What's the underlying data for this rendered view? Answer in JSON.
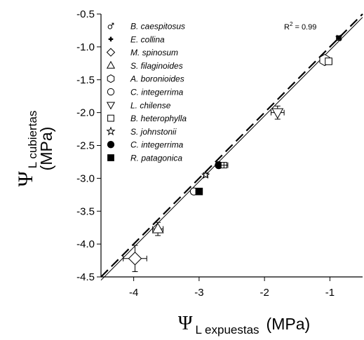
{
  "chart_data": {
    "type": "scatter",
    "x_axis": {
      "symbol": "Ψ",
      "subscript": "L expuestas",
      "unit": "(MPa)",
      "range": [
        -4.5,
        -0.5
      ],
      "ticks": [
        -4,
        -3,
        -2,
        -1
      ],
      "tick_labels": [
        "-4",
        "-3",
        "-2",
        "-1"
      ]
    },
    "y_axis": {
      "symbol": "Ψ",
      "subscript": "L cubiertas",
      "unit": "(MPa)",
      "range": [
        -4.5,
        -0.5
      ],
      "ticks": [
        -4.5,
        -4.0,
        -3.5,
        -3.0,
        -2.5,
        -2.0,
        -1.5,
        -1.0,
        -0.5
      ],
      "tick_labels": [
        "-4.5",
        "-4.0",
        "-3.5",
        "-3.0",
        "-2.5",
        "-2.0",
        "-1.5",
        "-1.0",
        "-0.5"
      ]
    },
    "annotation": {
      "text": "R",
      "sup": "2",
      "rest": " = 0.99"
    },
    "reference_lines": [
      {
        "kind": "1:1 line",
        "style": "dashed",
        "x": [
          -4.5,
          -0.5
        ],
        "y": [
          -4.5,
          -0.5
        ]
      },
      {
        "kind": "regression",
        "style": "solid",
        "x": [
          -4.5,
          -0.5
        ],
        "y": [
          -4.55,
          -0.55
        ]
      }
    ],
    "series": [
      {
        "name": "B. caespitosus",
        "marker": "male",
        "x": -0.86,
        "y": -0.86,
        "xerr": 0.03,
        "yerr": 0.03
      },
      {
        "name": "E. collina",
        "marker": "plus",
        "x": -0.87,
        "y": -0.87,
        "xerr": 0.03,
        "yerr": 0.03
      },
      {
        "name": "M. spinosum",
        "marker": "diamond",
        "x": -3.98,
        "y": -4.22,
        "xerr": 0.18,
        "yerr": 0.2
      },
      {
        "name": "S. filaginoides",
        "marker": "triangle-up",
        "x": -3.63,
        "y": -3.77,
        "xerr": 0.08,
        "yerr": 0.1
      },
      {
        "name": "A. boronioides",
        "marker": "hexagon",
        "x": -1.08,
        "y": -1.2,
        "xerr": 0.07,
        "yerr": 0.06
      },
      {
        "name": "C. integerrima",
        "marker": "circle-open",
        "x": -3.08,
        "y": -3.2,
        "xerr": 0.04,
        "yerr": 0.03
      },
      {
        "name": "L. chilense",
        "marker": "triangle-down",
        "x": -1.8,
        "y": -2.0,
        "xerr": 0.1,
        "yerr": 0.1
      },
      {
        "name": "B. heterophylla",
        "marker": "square-open",
        "x": -1.02,
        "y": -1.22,
        "xerr": 0.05,
        "yerr": 0.03
      },
      {
        "name": "S. johnstonii",
        "marker": "star",
        "x": -2.9,
        "y": -2.95,
        "xerr": 0.03,
        "yerr": 0.03
      },
      {
        "name": "C. integerrima",
        "marker": "circle-filled",
        "x": -2.7,
        "y": -2.8,
        "xerr": 0.03,
        "yerr": 0.03
      },
      {
        "name": "R. patagonica",
        "marker": "square-filled",
        "x": -3.0,
        "y": -3.2,
        "xerr": 0.03,
        "yerr": 0.03
      },
      {
        "name": "",
        "marker": "square-crossed",
        "x": -2.62,
        "y": -2.8,
        "xerr": 0.06,
        "yerr": 0.04
      }
    ]
  }
}
